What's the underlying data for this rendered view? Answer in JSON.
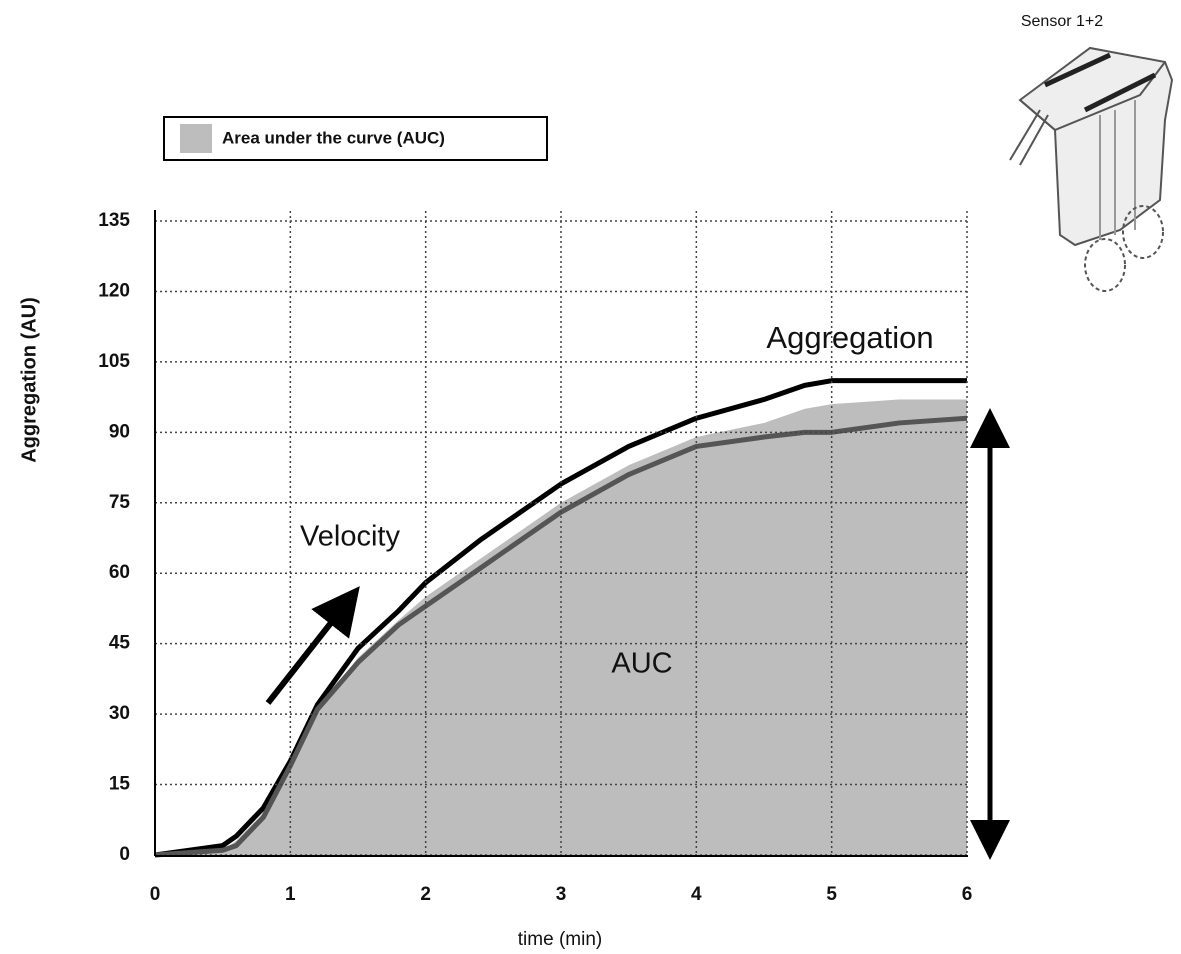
{
  "chart_data": {
    "type": "line",
    "ylabel": "Aggregation (AU)",
    "xlabel": "time (min)",
    "annotations": [
      "Aggregation",
      "Velocity",
      "AUC",
      "Sensor 1+2"
    ],
    "x": [
      0,
      0.5,
      0.6,
      0.8,
      1,
      1.2,
      1.5,
      1.8,
      2,
      2.4,
      2.8,
      3,
      3.5,
      4,
      4.5,
      4.8,
      5,
      5.5,
      6
    ],
    "series": [
      {
        "name": "Area under the curve (AUC)",
        "color": "#bdbdbd",
        "fill": true,
        "values": [
          0,
          1,
          3,
          9,
          19,
          31,
          42,
          50,
          55,
          63,
          71,
          75,
          83,
          89,
          92,
          95,
          96,
          97,
          97
        ]
      },
      {
        "color": "#000000",
        "fill": false,
        "values": [
          0,
          2,
          4,
          10,
          20,
          32,
          44,
          52,
          58,
          67,
          75,
          79,
          87,
          93,
          97,
          100,
          101,
          101,
          101
        ]
      },
      {
        "color": "#555555",
        "fill": false,
        "values": [
          0,
          1,
          2,
          8,
          19,
          31,
          41,
          49,
          53,
          61,
          69,
          73,
          81,
          87,
          89,
          90,
          90,
          92,
          93
        ]
      }
    ],
    "xlim": [
      0,
      6
    ],
    "xticks": [
      0,
      1,
      2,
      3,
      4,
      5,
      6
    ],
    "ylim": [
      0,
      135
    ],
    "yticks": [
      0,
      15,
      30,
      45,
      60,
      75,
      90,
      105,
      120,
      135
    ],
    "grid": true
  }
}
